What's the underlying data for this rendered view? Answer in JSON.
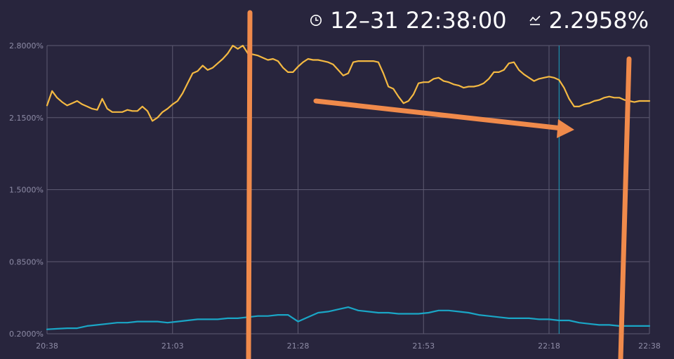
{
  "header": {
    "time_icon": "clock-icon",
    "time": "12–31 22:38:00",
    "rate_icon": "line-chart-icon",
    "rate": "2.2958%"
  },
  "colors": {
    "background": "#28253d",
    "grid": "#5e5b72",
    "series_rate": "#f4b942",
    "series_low": "#1aa6c6",
    "crosshair": "#1aa6c6",
    "annotation": "#f08a4b"
  },
  "chart_data": {
    "type": "line",
    "title": "",
    "xlabel": "",
    "ylabel": "",
    "x_ticks": [
      "20:38",
      "21:03",
      "21:28",
      "21:53",
      "22:18",
      "22:38"
    ],
    "x_tick_minutes": [
      0,
      25,
      50,
      75,
      100,
      120
    ],
    "y_ticks": [
      "0.2000%",
      "0.8500%",
      "1.5000%",
      "2.1500%",
      "2.8000%"
    ],
    "y_tick_values": [
      0.2,
      0.85,
      1.5,
      2.15,
      2.8
    ],
    "ylim": [
      0.2,
      2.8
    ],
    "x_range_minutes": [
      0,
      120
    ],
    "grid": true,
    "crosshair_minute": 102,
    "series": [
      {
        "color": "#f4b942",
        "x": [
          0,
          1,
          2,
          3,
          4,
          5,
          6,
          7,
          8,
          9,
          10,
          11,
          12,
          13,
          14,
          15,
          16,
          17,
          18,
          19,
          20,
          21,
          22,
          23,
          24,
          25,
          26,
          27,
          28,
          29,
          30,
          31,
          32,
          33,
          34,
          35,
          36,
          37,
          38,
          39,
          40,
          41,
          42,
          43,
          44,
          45,
          46,
          47,
          48,
          49,
          50,
          51,
          52,
          53,
          54,
          55,
          56,
          57,
          58,
          59,
          60,
          61,
          62,
          63,
          64,
          65,
          66,
          67,
          68,
          69,
          70,
          71,
          72,
          73,
          74,
          75,
          76,
          77,
          78,
          79,
          80,
          81,
          82,
          83,
          84,
          85,
          86,
          87,
          88,
          89,
          90,
          91,
          92,
          93,
          94,
          95,
          96,
          97,
          98,
          99,
          100,
          101,
          102,
          103,
          104,
          105,
          106,
          107,
          108,
          109,
          110,
          111,
          112,
          113,
          114,
          115,
          116,
          117,
          118,
          119,
          120
        ],
        "y": [
          2.26,
          2.39,
          2.33,
          2.29,
          2.26,
          2.28,
          2.3,
          2.27,
          2.25,
          2.23,
          2.22,
          2.32,
          2.23,
          2.2,
          2.2,
          2.2,
          2.22,
          2.21,
          2.21,
          2.25,
          2.21,
          2.12,
          2.15,
          2.2,
          2.23,
          2.27,
          2.3,
          2.37,
          2.46,
          2.55,
          2.57,
          2.62,
          2.58,
          2.6,
          2.64,
          2.68,
          2.73,
          2.8,
          2.77,
          2.8,
          2.73,
          2.72,
          2.71,
          2.69,
          2.67,
          2.68,
          2.66,
          2.6,
          2.56,
          2.56,
          2.61,
          2.65,
          2.68,
          2.67,
          2.67,
          2.66,
          2.65,
          2.63,
          2.58,
          2.53,
          2.55,
          2.65,
          2.66,
          2.66,
          2.66,
          2.66,
          2.65,
          2.55,
          2.43,
          2.41,
          2.34,
          2.28,
          2.3,
          2.36,
          2.46,
          2.47,
          2.47,
          2.5,
          2.51,
          2.48,
          2.47,
          2.45,
          2.44,
          2.42,
          2.43,
          2.43,
          2.44,
          2.46,
          2.5,
          2.56,
          2.56,
          2.58,
          2.64,
          2.65,
          2.58,
          2.54,
          2.51,
          2.48,
          2.5,
          2.51,
          2.52,
          2.51,
          2.49,
          2.42,
          2.32,
          2.25,
          2.25,
          2.27,
          2.28,
          2.3,
          2.31,
          2.33,
          2.34,
          2.33,
          2.33,
          2.31,
          2.3,
          2.29,
          2.3,
          2.3,
          2.3
        ]
      },
      {
        "color": "#1aa6c6",
        "x": [
          0,
          2,
          4,
          6,
          8,
          10,
          12,
          14,
          16,
          18,
          20,
          22,
          24,
          26,
          28,
          30,
          32,
          34,
          36,
          38,
          40,
          42,
          44,
          46,
          48,
          50,
          52,
          54,
          56,
          58,
          60,
          62,
          64,
          66,
          68,
          70,
          72,
          74,
          76,
          78,
          80,
          82,
          84,
          86,
          88,
          90,
          92,
          94,
          96,
          98,
          100,
          102,
          104,
          106,
          108,
          110,
          112,
          114,
          116,
          118,
          120
        ],
        "y": [
          0.24,
          0.245,
          0.25,
          0.25,
          0.27,
          0.28,
          0.29,
          0.3,
          0.3,
          0.31,
          0.31,
          0.31,
          0.3,
          0.31,
          0.32,
          0.33,
          0.33,
          0.33,
          0.34,
          0.34,
          0.35,
          0.36,
          0.36,
          0.37,
          0.37,
          0.31,
          0.35,
          0.39,
          0.4,
          0.42,
          0.44,
          0.41,
          0.4,
          0.39,
          0.39,
          0.38,
          0.38,
          0.38,
          0.39,
          0.41,
          0.41,
          0.4,
          0.39,
          0.37,
          0.36,
          0.35,
          0.34,
          0.34,
          0.34,
          0.33,
          0.33,
          0.32,
          0.32,
          0.3,
          0.29,
          0.28,
          0.28,
          0.27,
          0.27,
          0.27,
          0.27
        ]
      }
    ]
  }
}
